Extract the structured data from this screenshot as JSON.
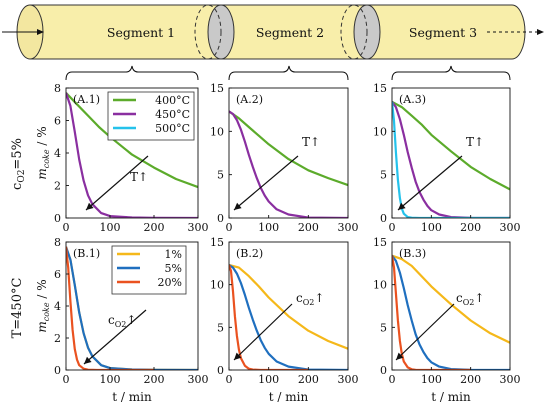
{
  "diagram": {
    "segments": [
      "Segment 1",
      "Segment 2",
      "Segment 3"
    ],
    "colors": {
      "tube": "#f8eeaa",
      "tube_end": "#f3e7a0",
      "disk": "#c9c9c9",
      "stroke": "#333333"
    }
  },
  "row_labels": [
    "c$O2=5%",
    "T=450°C"
  ],
  "row_label_parts": {
    "r1_main": "c",
    "r1_sub": "O2",
    "r1_tail": "=5%",
    "r2": "T=450°C"
  },
  "ylabel": {
    "main": "m",
    "sub": "coke",
    "tail": " / %"
  },
  "xlabel": "t / min",
  "x_ticks": [
    0,
    100,
    200,
    300
  ],
  "colors": {
    "400C": "#5cab2b",
    "450C": "#8a2fa0",
    "500C": "#25c2eb",
    "1pct": "#f5b81a",
    "5pct": "#1f6fbf",
    "20pct": "#ea5220"
  },
  "chart_data": [
    {
      "id": "A.1",
      "type": "line",
      "xlim": [
        0,
        300
      ],
      "ylim": [
        0,
        8
      ],
      "yticks": [
        0,
        2,
        4,
        6,
        8
      ],
      "legend": {
        "placement": "top-right",
        "entries": [
          "400°C",
          "450°C",
          "500°C"
        ]
      },
      "annotation": "T↑",
      "series": [
        {
          "name": "400°C",
          "color": "#5cab2b",
          "x": [
            0,
            25,
            50,
            75,
            100,
            150,
            200,
            250,
            300
          ],
          "y": [
            7.7,
            7.0,
            6.3,
            5.6,
            5.0,
            3.9,
            3.1,
            2.4,
            1.9
          ]
        },
        {
          "name": "450°C",
          "color": "#8a2fa0",
          "x": [
            0,
            10,
            20,
            30,
            40,
            50,
            60,
            80,
            100,
            150,
            200,
            300
          ],
          "y": [
            7.7,
            6.9,
            5.3,
            3.6,
            2.3,
            1.4,
            0.85,
            0.3,
            0.12,
            0.03,
            0.01,
            0.0
          ]
        }
      ]
    },
    {
      "id": "A.2",
      "type": "line",
      "xlim": [
        0,
        300
      ],
      "ylim": [
        0,
        15
      ],
      "yticks": [
        0,
        5,
        10,
        15
      ],
      "annotation": "T↑",
      "series": [
        {
          "name": "400°C",
          "color": "#5cab2b",
          "x": [
            0,
            25,
            50,
            75,
            100,
            150,
            200,
            250,
            300
          ],
          "y": [
            12.3,
            11.5,
            10.5,
            9.5,
            8.5,
            6.8,
            5.5,
            4.6,
            3.8
          ]
        },
        {
          "name": "450°C",
          "color": "#8a2fa0",
          "x": [
            0,
            10,
            20,
            30,
            40,
            50,
            60,
            70,
            80,
            90,
            100,
            120,
            150,
            200,
            300
          ],
          "y": [
            12.3,
            12.0,
            11.3,
            10.2,
            8.8,
            7.3,
            5.9,
            4.6,
            3.5,
            2.6,
            1.9,
            1.0,
            0.4,
            0.05,
            0.0
          ]
        }
      ]
    },
    {
      "id": "A.3",
      "type": "line",
      "xlim": [
        0,
        300
      ],
      "ylim": [
        0,
        15
      ],
      "yticks": [
        0,
        5,
        10,
        15
      ],
      "annotation": "T↑",
      "series": [
        {
          "name": "400°C",
          "color": "#5cab2b",
          "x": [
            0,
            25,
            50,
            75,
            100,
            150,
            200,
            250,
            300
          ],
          "y": [
            13.4,
            12.8,
            11.8,
            10.8,
            9.6,
            7.7,
            5.9,
            4.5,
            3.3
          ]
        },
        {
          "name": "450°C",
          "color": "#8a2fa0",
          "x": [
            0,
            10,
            20,
            30,
            40,
            50,
            60,
            70,
            80,
            90,
            100,
            120,
            150,
            200,
            300
          ],
          "y": [
            13.4,
            12.8,
            11.4,
            9.6,
            7.6,
            5.8,
            4.2,
            3.0,
            2.1,
            1.4,
            0.9,
            0.4,
            0.1,
            0.02,
            0.0
          ]
        },
        {
          "name": "500°C",
          "color": "#25c2eb",
          "x": [
            0,
            5,
            10,
            15,
            20,
            25,
            30,
            40,
            50,
            70,
            100,
            300
          ],
          "y": [
            13.4,
            11.2,
            7.6,
            4.4,
            2.3,
            1.1,
            0.5,
            0.1,
            0.03,
            0.0,
            0.0,
            0.0
          ]
        }
      ]
    },
    {
      "id": "B.1",
      "type": "line",
      "xlim": [
        0,
        300
      ],
      "ylim": [
        0,
        8
      ],
      "yticks": [
        0,
        2,
        4,
        6,
        8
      ],
      "legend": {
        "placement": "top-center",
        "entries": [
          "1%",
          "5%",
          "20%"
        ]
      },
      "annotation": "cO2↑",
      "series": [
        {
          "name": "1%",
          "color": "#f5b81a",
          "x": [
            0,
            10,
            20,
            30,
            40,
            50,
            60,
            80,
            100,
            150,
            200,
            300
          ],
          "y": [
            7.7,
            6.9,
            5.3,
            3.6,
            2.3,
            1.4,
            0.85,
            0.3,
            0.12,
            0.03,
            0.01,
            0.0
          ]
        },
        {
          "name": "5%",
          "color": "#1f6fbf",
          "x": [
            0,
            10,
            20,
            30,
            40,
            50,
            60,
            80,
            100,
            150,
            200,
            300
          ],
          "y": [
            7.7,
            6.9,
            5.3,
            3.6,
            2.3,
            1.4,
            0.85,
            0.3,
            0.12,
            0.03,
            0.01,
            0.0
          ]
        },
        {
          "name": "20%",
          "color": "#ea5220",
          "x": [
            0,
            5,
            10,
            15,
            20,
            25,
            30,
            40,
            50,
            70,
            100,
            150,
            200
          ],
          "y": [
            7.7,
            6.4,
            4.3,
            2.5,
            1.3,
            0.65,
            0.3,
            0.08,
            0.02,
            0.0,
            0.0,
            0.0,
            0.0
          ]
        }
      ]
    },
    {
      "id": "B.2",
      "type": "line",
      "xlim": [
        0,
        300
      ],
      "ylim": [
        0,
        15
      ],
      "yticks": [
        0,
        5,
        10,
        15
      ],
      "annotation": "cO2↑",
      "series": [
        {
          "name": "1%",
          "color": "#f5b81a",
          "x": [
            0,
            25,
            50,
            75,
            100,
            150,
            200,
            250,
            300
          ],
          "y": [
            12.3,
            12.0,
            11.0,
            9.8,
            8.5,
            6.3,
            4.6,
            3.4,
            2.5
          ]
        },
        {
          "name": "5%",
          "color": "#1f6fbf",
          "x": [
            0,
            10,
            20,
            30,
            40,
            50,
            60,
            70,
            80,
            90,
            100,
            120,
            150,
            200,
            300
          ],
          "y": [
            12.3,
            12.0,
            11.3,
            10.2,
            8.8,
            7.3,
            5.9,
            4.6,
            3.5,
            2.6,
            1.9,
            1.0,
            0.4,
            0.05,
            0.0
          ]
        },
        {
          "name": "20%",
          "color": "#ea5220",
          "x": [
            0,
            5,
            10,
            15,
            20,
            25,
            30,
            40,
            50,
            60,
            80,
            100,
            150,
            200
          ],
          "y": [
            12.3,
            11.6,
            9.2,
            6.3,
            4.0,
            2.4,
            1.4,
            0.5,
            0.15,
            0.05,
            0.0,
            0.0,
            0.0,
            0.0
          ]
        }
      ]
    },
    {
      "id": "B.3",
      "type": "line",
      "xlim": [
        0,
        300
      ],
      "ylim": [
        0,
        15
      ],
      "yticks": [
        0,
        5,
        10,
        15
      ],
      "annotation": "cO2↑",
      "series": [
        {
          "name": "1%",
          "color": "#f5b81a",
          "x": [
            0,
            25,
            50,
            75,
            100,
            150,
            200,
            250,
            300
          ],
          "y": [
            13.4,
            13.0,
            12.2,
            11.0,
            9.8,
            7.7,
            5.8,
            4.3,
            3.2
          ]
        },
        {
          "name": "5%",
          "color": "#1f6fbf",
          "x": [
            0,
            10,
            20,
            30,
            40,
            50,
            60,
            70,
            80,
            90,
            100,
            120,
            150,
            200,
            300
          ],
          "y": [
            13.4,
            12.8,
            11.4,
            9.6,
            7.6,
            5.8,
            4.2,
            3.0,
            2.1,
            1.4,
            0.9,
            0.4,
            0.1,
            0.02,
            0.0
          ]
        },
        {
          "name": "20%",
          "color": "#ea5220",
          "x": [
            0,
            5,
            10,
            15,
            20,
            25,
            30,
            40,
            50,
            60,
            80,
            100,
            150,
            200
          ],
          "y": [
            13.4,
            12.0,
            9.0,
            5.8,
            3.4,
            1.9,
            1.0,
            0.3,
            0.08,
            0.02,
            0.0,
            0.0,
            0.0,
            0.0
          ]
        }
      ]
    }
  ]
}
